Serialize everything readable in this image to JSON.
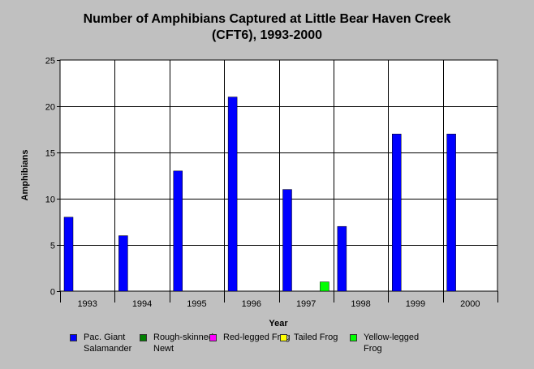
{
  "chart_data": {
    "type": "bar",
    "title_lines": [
      "Number of Amphibians Captured at Little Bear Haven Creek",
      "(CFT6), 1993-2000"
    ],
    "xlabel": "Year",
    "ylabel": "Amphibians",
    "ylim": [
      0,
      25
    ],
    "yticks": [
      0,
      5,
      10,
      15,
      20,
      25
    ],
    "grid": true,
    "legend_position": "bottom",
    "categories": [
      "1993",
      "1994",
      "1995",
      "1996",
      "1997",
      "1998",
      "1999",
      "2000"
    ],
    "series": [
      {
        "name": "Pac. Giant Salamander",
        "color": "#0000ff",
        "values": [
          8,
          6,
          13,
          21,
          11,
          7,
          17,
          17
        ]
      },
      {
        "name": "Rough-skinned Newt",
        "color": "#008000",
        "values": [
          0,
          0,
          0,
          0,
          0,
          0,
          0,
          0
        ]
      },
      {
        "name": "Red-legged Frog",
        "color": "#ff00ff",
        "values": [
          0,
          0,
          0,
          0,
          0,
          0,
          0,
          0
        ]
      },
      {
        "name": "Tailed Frog",
        "color": "#ffff00",
        "values": [
          0,
          0,
          0,
          0,
          0,
          0,
          0,
          0
        ]
      },
      {
        "name": "Yellow-legged Frog",
        "color": "#00ff00",
        "values": [
          0,
          0,
          0,
          0,
          1,
          0,
          0,
          0
        ]
      }
    ]
  }
}
